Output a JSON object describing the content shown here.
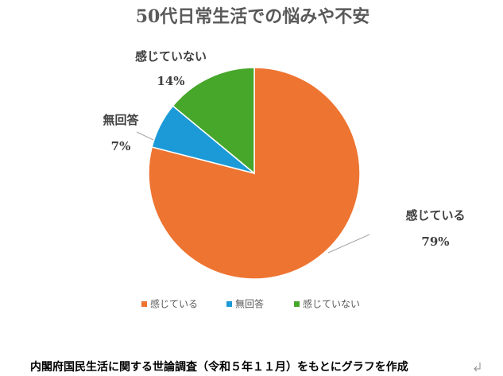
{
  "chart_data": {
    "type": "pie",
    "title": "50代日常生活での悩みや不安",
    "categories": [
      "感じている",
      "無回答",
      "感じていない"
    ],
    "values": [
      79,
      7,
      14
    ],
    "value_labels": [
      "79%",
      "7%",
      "14%"
    ],
    "colors": [
      "#ee7431",
      "#1c9ad8",
      "#46a72b"
    ],
    "legend": "bottom"
  },
  "caption": "内閣府国民生活に関する世論調査（令和５年１１月）をもとにグラフを作成"
}
